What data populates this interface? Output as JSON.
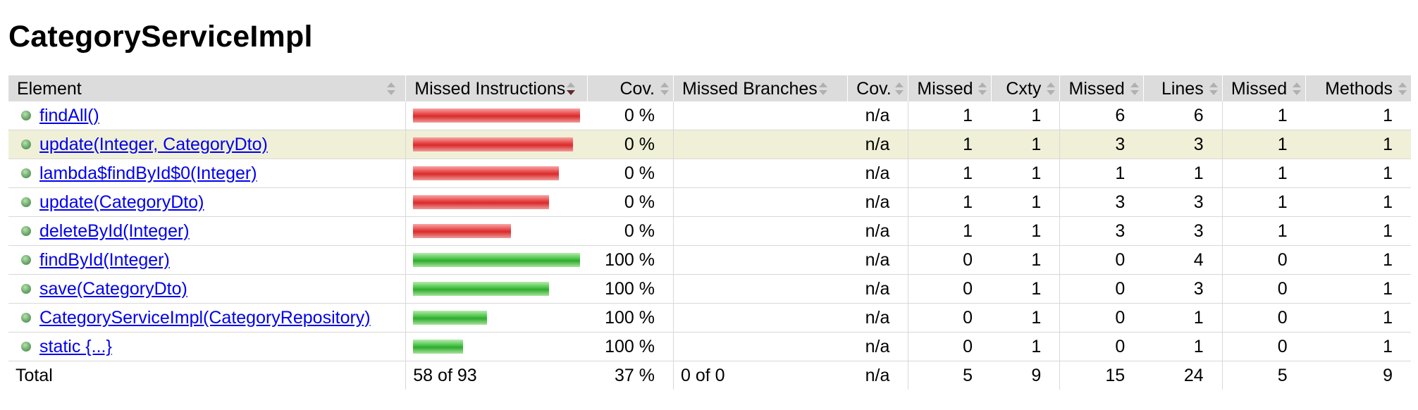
{
  "page_title": "CategoryServiceImpl",
  "headers": {
    "element": "Element",
    "missed_instructions": "Missed Instructions",
    "cov_instructions": "Cov.",
    "missed_branches": "Missed Branches",
    "cov_branches": "Cov.",
    "missed_cxty": "Missed",
    "cxty": "Cxty",
    "missed_lines": "Missed",
    "lines": "Lines",
    "missed_methods": "Missed",
    "methods": "Methods"
  },
  "rows": [
    {
      "name": "findAll()",
      "missed_fraction": 1.0,
      "covered_fraction": 0.0,
      "cov": "0 %",
      "branches": "",
      "branch_cov": "n/a",
      "missed_cxty": "1",
      "cxty": "1",
      "missed_lines": "6",
      "lines": "6",
      "missed_methods": "1",
      "methods": "1",
      "highlight": false
    },
    {
      "name": "update(Integer, CategoryDto)",
      "missed_fraction": 0.93,
      "covered_fraction": 0.0,
      "cov": "0 %",
      "branches": "",
      "branch_cov": "n/a",
      "missed_cxty": "1",
      "cxty": "1",
      "missed_lines": "3",
      "lines": "3",
      "missed_methods": "1",
      "methods": "1",
      "highlight": true
    },
    {
      "name": "lambda$findById$0(Integer)",
      "missed_fraction": 0.85,
      "covered_fraction": 0.0,
      "cov": "0 %",
      "branches": "",
      "branch_cov": "n/a",
      "missed_cxty": "1",
      "cxty": "1",
      "missed_lines": "1",
      "lines": "1",
      "missed_methods": "1",
      "methods": "1",
      "highlight": false
    },
    {
      "name": "update(CategoryDto)",
      "missed_fraction": 0.79,
      "covered_fraction": 0.0,
      "cov": "0 %",
      "branches": "",
      "branch_cov": "n/a",
      "missed_cxty": "1",
      "cxty": "1",
      "missed_lines": "3",
      "lines": "3",
      "missed_methods": "1",
      "methods": "1",
      "highlight": false
    },
    {
      "name": "deleteById(Integer)",
      "missed_fraction": 0.57,
      "covered_fraction": 0.0,
      "cov": "0 %",
      "branches": "",
      "branch_cov": "n/a",
      "missed_cxty": "1",
      "cxty": "1",
      "missed_lines": "3",
      "lines": "3",
      "missed_methods": "1",
      "methods": "1",
      "highlight": false
    },
    {
      "name": "findById(Integer)",
      "missed_fraction": 0.0,
      "covered_fraction": 1.0,
      "cov": "100 %",
      "branches": "",
      "branch_cov": "n/a",
      "missed_cxty": "0",
      "cxty": "1",
      "missed_lines": "0",
      "lines": "4",
      "missed_methods": "0",
      "methods": "1",
      "highlight": false
    },
    {
      "name": "save(CategoryDto)",
      "missed_fraction": 0.0,
      "covered_fraction": 0.79,
      "cov": "100 %",
      "branches": "",
      "branch_cov": "n/a",
      "missed_cxty": "0",
      "cxty": "1",
      "missed_lines": "0",
      "lines": "3",
      "missed_methods": "0",
      "methods": "1",
      "highlight": false
    },
    {
      "name": "CategoryServiceImpl(CategoryRepository)",
      "missed_fraction": 0.0,
      "covered_fraction": 0.43,
      "cov": "100 %",
      "branches": "",
      "branch_cov": "n/a",
      "missed_cxty": "0",
      "cxty": "1",
      "missed_lines": "0",
      "lines": "1",
      "missed_methods": "0",
      "methods": "1",
      "highlight": false
    },
    {
      "name": "static {...}",
      "missed_fraction": 0.0,
      "covered_fraction": 0.29,
      "cov": "100 %",
      "branches": "",
      "branch_cov": "n/a",
      "missed_cxty": "0",
      "cxty": "1",
      "missed_lines": "0",
      "lines": "1",
      "missed_methods": "0",
      "methods": "1",
      "highlight": false
    }
  ],
  "total": {
    "label": "Total",
    "missed_instructions": "58 of 93",
    "cov": "37 %",
    "missed_branches": "0 of 0",
    "branch_cov": "n/a",
    "missed_cxty": "5",
    "cxty": "9",
    "missed_lines": "15",
    "lines": "24",
    "missed_methods": "5",
    "methods": "9"
  },
  "colors": {
    "missed_bar": "#d92c2c",
    "covered_bar": "#2eaa2e",
    "header_bg": "#dcdcdc",
    "highlight_row": "#f0f0d8",
    "link": "#0000ee"
  },
  "icons": {
    "method": "green-dot-icon",
    "sort": "sort-arrows-icon",
    "sort_active": "sort-down-icon"
  }
}
